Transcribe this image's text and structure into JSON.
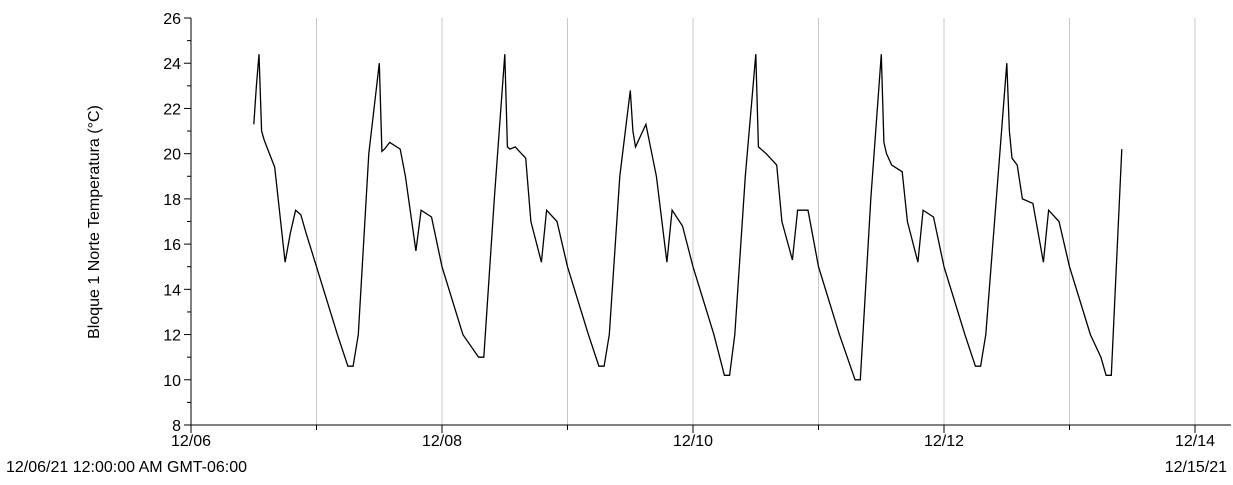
{
  "chart_data": {
    "type": "line",
    "title": "",
    "ylabel": "Bloque 1 Norte Temperatura (°C)",
    "xlabel": "",
    "ylim": [
      8,
      26
    ],
    "yticks": [
      8,
      10,
      12,
      14,
      16,
      18,
      20,
      22,
      24,
      26
    ],
    "xlim": [
      "2021-12-06",
      "2021-12-14 18:00"
    ],
    "xticks_labeled": [
      "12/06",
      "12/08",
      "12/10",
      "12/12",
      "12/14"
    ],
    "grid": "vertical lines at each day",
    "series": [
      {
        "color": "#000000",
        "x": [
          "2021-12-06 12:00",
          "2021-12-06 12:30",
          "2021-12-06 13:00",
          "2021-12-06 13:30",
          "2021-12-06 14:00",
          "2021-12-06 14:30",
          "2021-12-06 16:00",
          "2021-12-06 18:00",
          "2021-12-06 19:00",
          "2021-12-06 20:00",
          "2021-12-06 21:00",
          "2021-12-06 22:00",
          "2021-12-07 00:00",
          "2021-12-07 04:00",
          "2021-12-07 06:00",
          "2021-12-07 07:00",
          "2021-12-07 08:00",
          "2021-12-07 10:00",
          "2021-12-07 12:00",
          "2021-12-07 12:30",
          "2021-12-07 13:00",
          "2021-12-07 14:00",
          "2021-12-07 16:00",
          "2021-12-07 17:00",
          "2021-12-07 19:00",
          "2021-12-07 20:00",
          "2021-12-07 22:00",
          "2021-12-08 00:00",
          "2021-12-08 04:00",
          "2021-12-08 07:00",
          "2021-12-08 08:00",
          "2021-12-08 10:00",
          "2021-12-08 12:00",
          "2021-12-08 12:30",
          "2021-12-08 13:00",
          "2021-12-08 14:00",
          "2021-12-08 16:00",
          "2021-12-08 17:00",
          "2021-12-08 19:00",
          "2021-12-08 20:00",
          "2021-12-08 22:00",
          "2021-12-09 00:00",
          "2021-12-09 04:00",
          "2021-12-09 06:00",
          "2021-12-09 07:00",
          "2021-12-09 08:00",
          "2021-12-09 10:00",
          "2021-12-09 12:00",
          "2021-12-09 12:30",
          "2021-12-09 13:00",
          "2021-12-09 14:00",
          "2021-12-09 15:00",
          "2021-12-09 17:00",
          "2021-12-09 19:00",
          "2021-12-09 20:00",
          "2021-12-09 22:00",
          "2021-12-10 00:00",
          "2021-12-10 04:00",
          "2021-12-10 06:00",
          "2021-12-10 07:00",
          "2021-12-10 08:00",
          "2021-12-10 10:00",
          "2021-12-10 12:00",
          "2021-12-10 12:30",
          "2021-12-10 13:00",
          "2021-12-10 14:00",
          "2021-12-10 16:00",
          "2021-12-10 17:00",
          "2021-12-10 19:00",
          "2021-12-10 20:00",
          "2021-12-10 22:00",
          "2021-12-11 00:00",
          "2021-12-11 04:00",
          "2021-12-11 07:00",
          "2021-12-11 08:00",
          "2021-12-11 10:00",
          "2021-12-11 12:00",
          "2021-12-11 12:30",
          "2021-12-11 13:00",
          "2021-12-11 14:00",
          "2021-12-11 16:00",
          "2021-12-11 17:00",
          "2021-12-11 19:00",
          "2021-12-11 20:00",
          "2021-12-11 22:00",
          "2021-12-12 00:00",
          "2021-12-12 04:00",
          "2021-12-12 06:00",
          "2021-12-12 07:00",
          "2021-12-12 08:00",
          "2021-12-12 10:00",
          "2021-12-12 12:00",
          "2021-12-12 12:30",
          "2021-12-12 13:00",
          "2021-12-12 14:00",
          "2021-12-12 15:00",
          "2021-12-12 17:00",
          "2021-12-12 19:00",
          "2021-12-12 20:00",
          "2021-12-12 22:00",
          "2021-12-13 00:00",
          "2021-12-13 04:00",
          "2021-12-13 06:00",
          "2021-12-13 07:00",
          "2021-12-13 08:00",
          "2021-12-13 10:00"
        ],
        "y": [
          21.3,
          23.0,
          24.4,
          21.0,
          20.6,
          20.3,
          19.4,
          15.2,
          16.5,
          17.5,
          17.3,
          16.5,
          15.0,
          12.0,
          10.6,
          10.6,
          12.0,
          20.0,
          24.0,
          20.1,
          20.2,
          20.5,
          20.2,
          19.0,
          15.7,
          17.5,
          17.2,
          15.0,
          12.0,
          11.0,
          11.0,
          18.0,
          24.4,
          20.3,
          20.2,
          20.3,
          19.8,
          17.0,
          15.2,
          17.5,
          17.0,
          15.0,
          12.0,
          10.6,
          10.6,
          12.0,
          19.0,
          22.8,
          21.0,
          20.3,
          20.8,
          21.3,
          19.0,
          15.2,
          17.5,
          16.8,
          15.0,
          12.0,
          10.2,
          10.2,
          12.0,
          19.0,
          24.4,
          20.3,
          20.2,
          20.0,
          19.5,
          17.0,
          15.3,
          17.5,
          17.5,
          15.0,
          12.0,
          10.0,
          10.0,
          18.0,
          24.4,
          20.5,
          20.0,
          19.5,
          19.2,
          17.0,
          15.2,
          17.5,
          17.2,
          15.0,
          12.0,
          10.6,
          10.6,
          12.0,
          18.0,
          24.0,
          21.0,
          19.8,
          19.5,
          18.0,
          17.8,
          15.2,
          17.5,
          17.0,
          15.0,
          12.0,
          11.0,
          10.2,
          10.2,
          20.2
        ]
      }
    ]
  },
  "footer": {
    "left": "12/06/21 12:00:00 AM GMT-06:00",
    "right": "12/15/21"
  }
}
